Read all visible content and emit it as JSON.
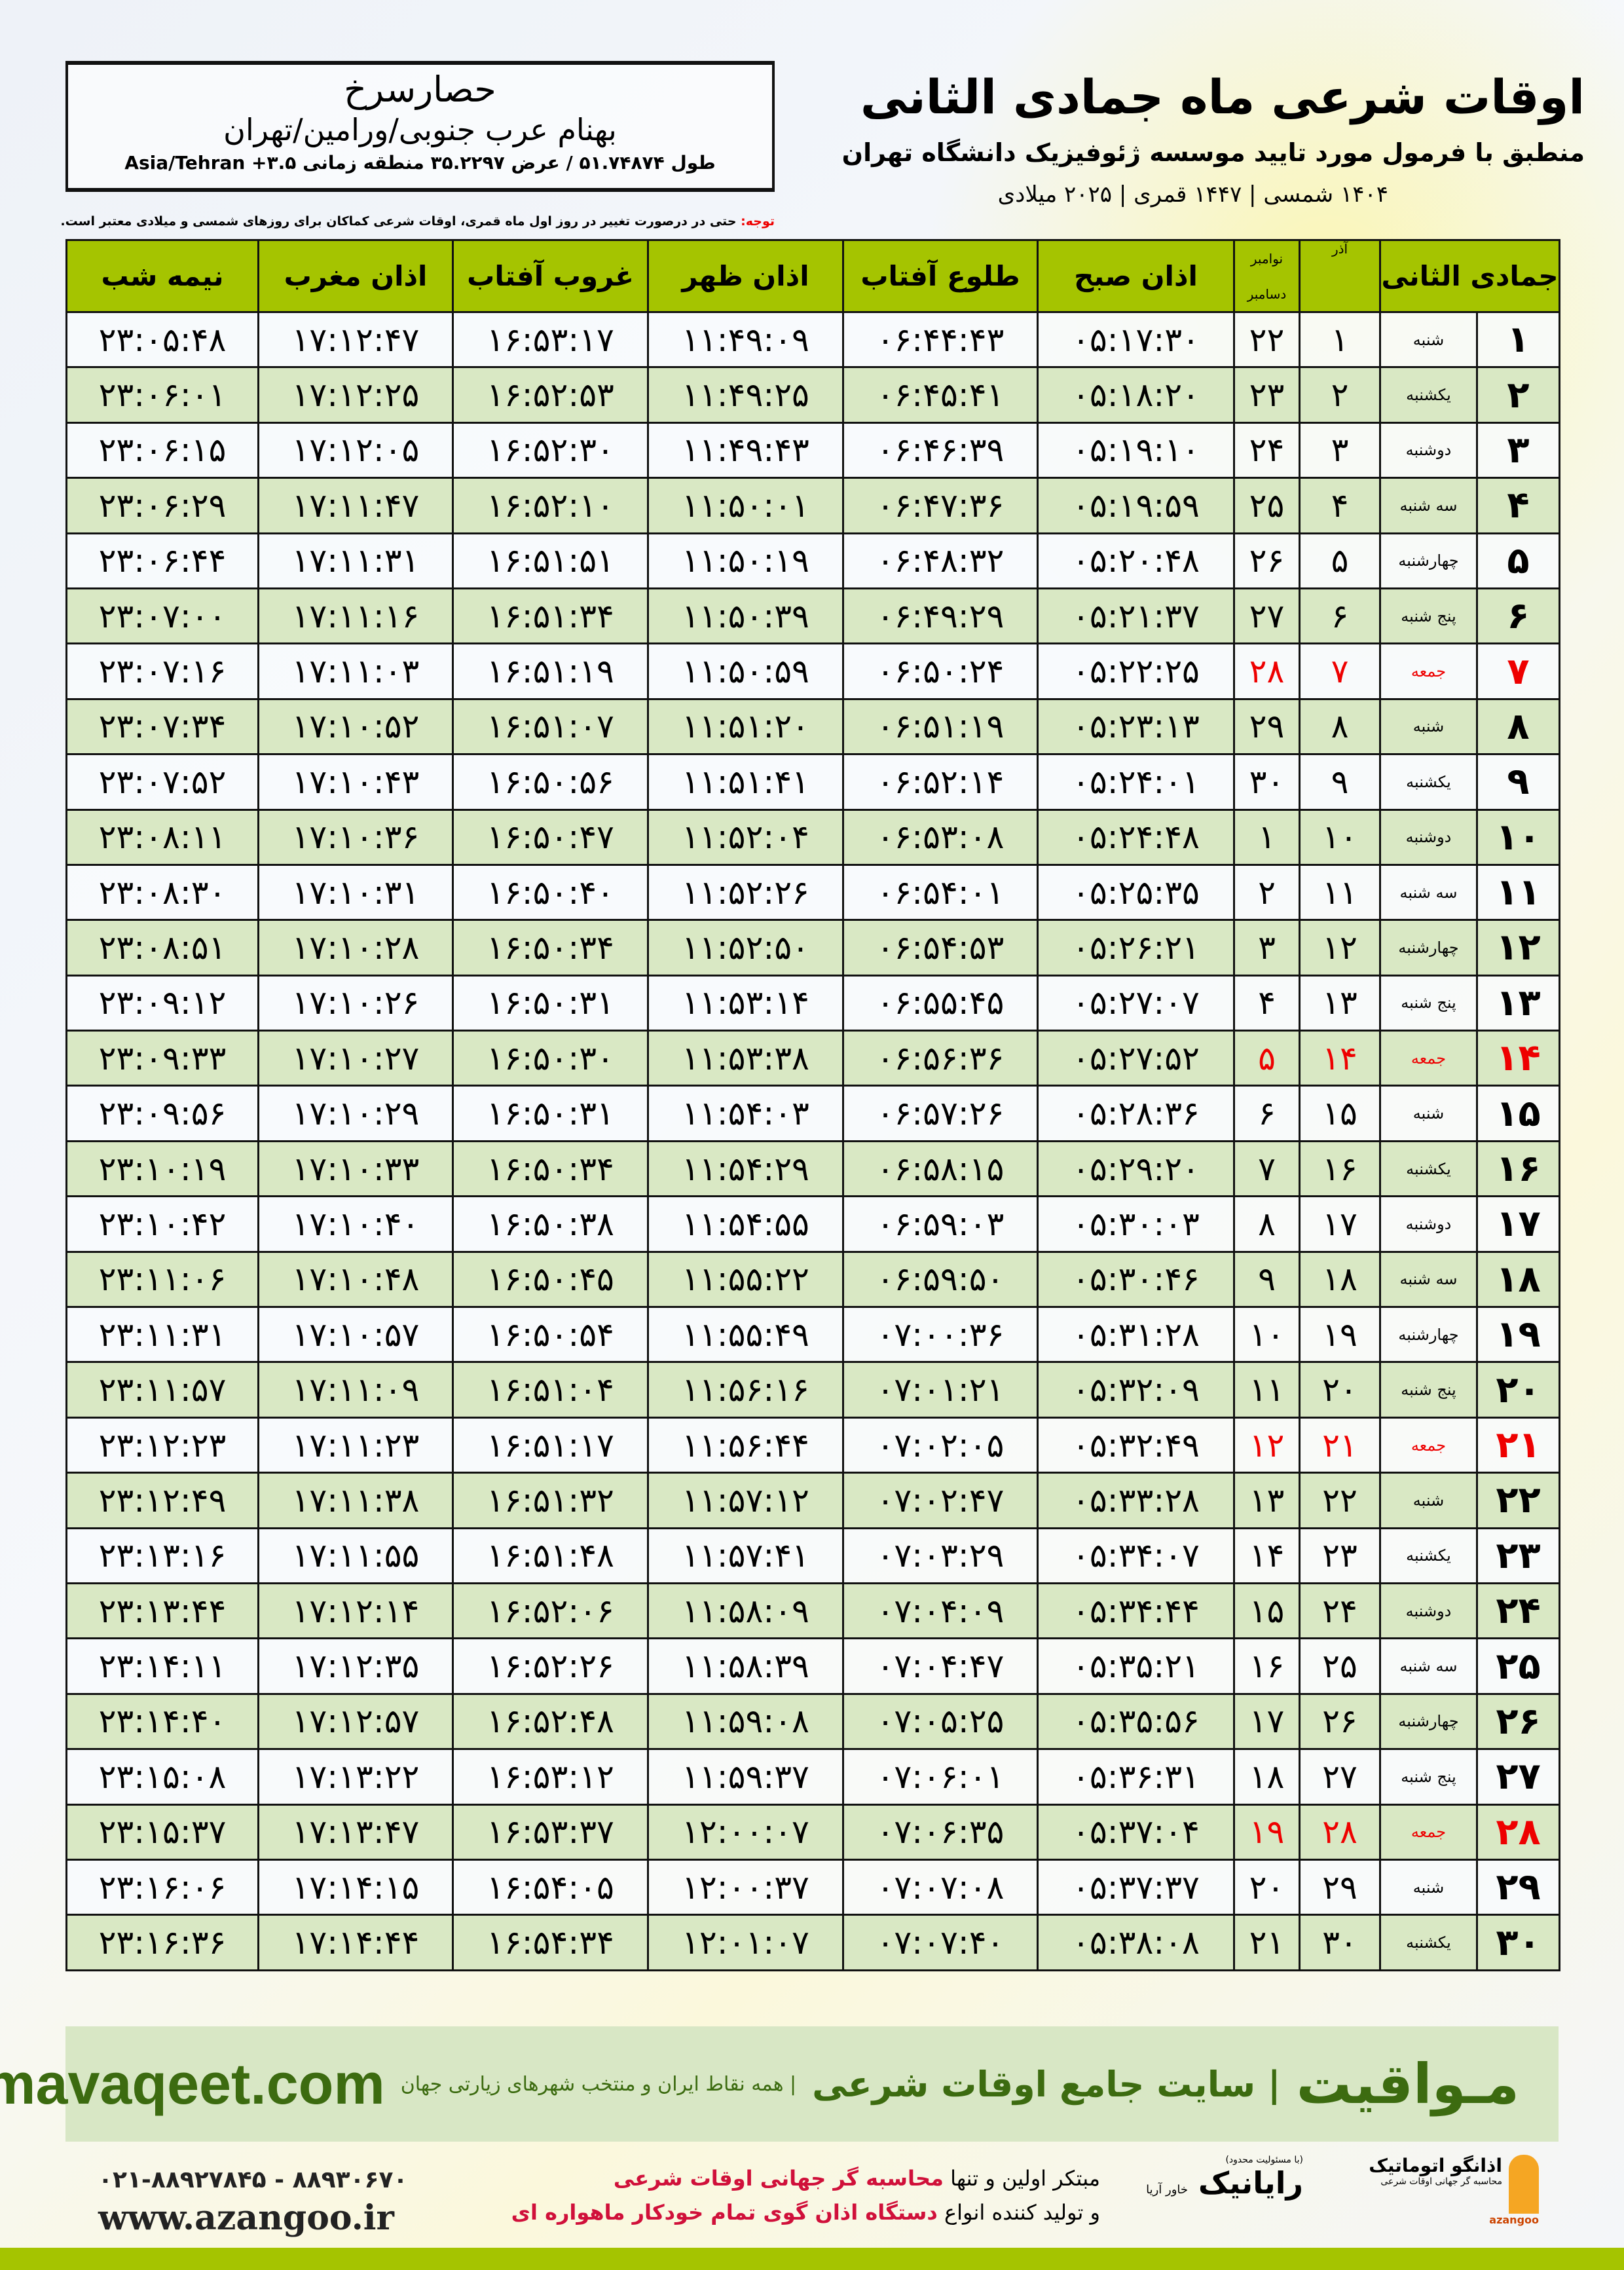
{
  "header": {
    "title": "اوقات شرعی ماه جمادی الثانی",
    "subtitle": "منطبق با فرمول مورد تایید موسسه ژئوفیزیک دانشگاه تهران",
    "years": "۱۴۰۴ شمسی | ۱۴۴۷ قمری | ۲۰۲۵ میلادی"
  },
  "location": {
    "city": "حصارسرخ",
    "region": "بهنام عرب جنوبی/ورامین/تهران",
    "coords": "طول ۵۱.۷۴۸۷۴ / عرض ۳۵.۲۲۹۷ منطقه زمانی ۳.۵+ Asia/Tehran"
  },
  "note": {
    "label": "توجه:",
    "text": " حتی در درصورت تغییر در روز اول ماه قمری، اوقات شرعی کماکان برای روزهای شمسی و میلادی معتبر است."
  },
  "table": {
    "headers": {
      "hijri": "جمادی الثانی",
      "azar": "آذر",
      "greg_top": "نوامبر",
      "greg_bottom": "دسامبر",
      "fajr": "اذان صبح",
      "sunrise": "طلوع آفتاب",
      "dhuhr": "اذان ظهر",
      "sunset": "غروب آفتاب",
      "maghrib": "اذان مغرب",
      "midnight": "نیمه شب"
    },
    "holiday_color": "#e00000",
    "rows": [
      [
        "۱",
        "شنبه",
        "۱",
        "۲۲",
        "۰۵:۱۷:۳۰",
        "۰۶:۴۴:۴۳",
        "۱۱:۴۹:۰۹",
        "۱۶:۵۳:۱۷",
        "۱۷:۱۲:۴۷",
        "۲۳:۰۵:۴۸"
      ],
      [
        "۲",
        "یکشنبه",
        "۲",
        "۲۳",
        "۰۵:۱۸:۲۰",
        "۰۶:۴۵:۴۱",
        "۱۱:۴۹:۲۵",
        "۱۶:۵۲:۵۳",
        "۱۷:۱۲:۲۵",
        "۲۳:۰۶:۰۱"
      ],
      [
        "۳",
        "دوشنبه",
        "۳",
        "۲۴",
        "۰۵:۱۹:۱۰",
        "۰۶:۴۶:۳۹",
        "۱۱:۴۹:۴۳",
        "۱۶:۵۲:۳۰",
        "۱۷:۱۲:۰۵",
        "۲۳:۰۶:۱۵"
      ],
      [
        "۴",
        "سه شنبه",
        "۴",
        "۲۵",
        "۰۵:۱۹:۵۹",
        "۰۶:۴۷:۳۶",
        "۱۱:۵۰:۰۱",
        "۱۶:۵۲:۱۰",
        "۱۷:۱۱:۴۷",
        "۲۳:۰۶:۲۹"
      ],
      [
        "۵",
        "چهارشنبه",
        "۵",
        "۲۶",
        "۰۵:۲۰:۴۸",
        "۰۶:۴۸:۳۲",
        "۱۱:۵۰:۱۹",
        "۱۶:۵۱:۵۱",
        "۱۷:۱۱:۳۱",
        "۲۳:۰۶:۴۴"
      ],
      [
        "۶",
        "پنج شنبه",
        "۶",
        "۲۷",
        "۰۵:۲۱:۳۷",
        "۰۶:۴۹:۲۹",
        "۱۱:۵۰:۳۹",
        "۱۶:۵۱:۳۴",
        "۱۷:۱۱:۱۶",
        "۲۳:۰۷:۰۰"
      ],
      [
        "۷",
        "جمعه",
        "۷",
        "۲۸",
        "۰۵:۲۲:۲۵",
        "۰۶:۵۰:۲۴",
        "۱۱:۵۰:۵۹",
        "۱۶:۵۱:۱۹",
        "۱۷:۱۱:۰۳",
        "۲۳:۰۷:۱۶"
      ],
      [
        "۸",
        "شنبه",
        "۸",
        "۲۹",
        "۰۵:۲۳:۱۳",
        "۰۶:۵۱:۱۹",
        "۱۱:۵۱:۲۰",
        "۱۶:۵۱:۰۷",
        "۱۷:۱۰:۵۲",
        "۲۳:۰۷:۳۴"
      ],
      [
        "۹",
        "یکشنبه",
        "۹",
        "۳۰",
        "۰۵:۲۴:۰۱",
        "۰۶:۵۲:۱۴",
        "۱۱:۵۱:۴۱",
        "۱۶:۵۰:۵۶",
        "۱۷:۱۰:۴۳",
        "۲۳:۰۷:۵۲"
      ],
      [
        "۱۰",
        "دوشنبه",
        "۱۰",
        "۱",
        "۰۵:۲۴:۴۸",
        "۰۶:۵۳:۰۸",
        "۱۱:۵۲:۰۴",
        "۱۶:۵۰:۴۷",
        "۱۷:۱۰:۳۶",
        "۲۳:۰۸:۱۱"
      ],
      [
        "۱۱",
        "سه شنبه",
        "۱۱",
        "۲",
        "۰۵:۲۵:۳۵",
        "۰۶:۵۴:۰۱",
        "۱۱:۵۲:۲۶",
        "۱۶:۵۰:۴۰",
        "۱۷:۱۰:۳۱",
        "۲۳:۰۸:۳۰"
      ],
      [
        "۱۲",
        "چهارشنبه",
        "۱۲",
        "۳",
        "۰۵:۲۶:۲۱",
        "۰۶:۵۴:۵۳",
        "۱۱:۵۲:۵۰",
        "۱۶:۵۰:۳۴",
        "۱۷:۱۰:۲۸",
        "۲۳:۰۸:۵۱"
      ],
      [
        "۱۳",
        "پنج شنبه",
        "۱۳",
        "۴",
        "۰۵:۲۷:۰۷",
        "۰۶:۵۵:۴۵",
        "۱۱:۵۳:۱۴",
        "۱۶:۵۰:۳۱",
        "۱۷:۱۰:۲۶",
        "۲۳:۰۹:۱۲"
      ],
      [
        "۱۴",
        "جمعه",
        "۱۴",
        "۵",
        "۰۵:۲۷:۵۲",
        "۰۶:۵۶:۳۶",
        "۱۱:۵۳:۳۸",
        "۱۶:۵۰:۳۰",
        "۱۷:۱۰:۲۷",
        "۲۳:۰۹:۳۳"
      ],
      [
        "۱۵",
        "شنبه",
        "۱۵",
        "۶",
        "۰۵:۲۸:۳۶",
        "۰۶:۵۷:۲۶",
        "۱۱:۵۴:۰۳",
        "۱۶:۵۰:۳۱",
        "۱۷:۱۰:۲۹",
        "۲۳:۰۹:۵۶"
      ],
      [
        "۱۶",
        "یکشنبه",
        "۱۶",
        "۷",
        "۰۵:۲۹:۲۰",
        "۰۶:۵۸:۱۵",
        "۱۱:۵۴:۲۹",
        "۱۶:۵۰:۳۴",
        "۱۷:۱۰:۳۳",
        "۲۳:۱۰:۱۹"
      ],
      [
        "۱۷",
        "دوشنبه",
        "۱۷",
        "۸",
        "۰۵:۳۰:۰۳",
        "۰۶:۵۹:۰۳",
        "۱۱:۵۴:۵۵",
        "۱۶:۵۰:۳۸",
        "۱۷:۱۰:۴۰",
        "۲۳:۱۰:۴۲"
      ],
      [
        "۱۸",
        "سه شنبه",
        "۱۸",
        "۹",
        "۰۵:۳۰:۴۶",
        "۰۶:۵۹:۵۰",
        "۱۱:۵۵:۲۲",
        "۱۶:۵۰:۴۵",
        "۱۷:۱۰:۴۸",
        "۲۳:۱۱:۰۶"
      ],
      [
        "۱۹",
        "چهارشنبه",
        "۱۹",
        "۱۰",
        "۰۵:۳۱:۲۸",
        "۰۷:۰۰:۳۶",
        "۱۱:۵۵:۴۹",
        "۱۶:۵۰:۵۴",
        "۱۷:۱۰:۵۷",
        "۲۳:۱۱:۳۱"
      ],
      [
        "۲۰",
        "پنج شنبه",
        "۲۰",
        "۱۱",
        "۰۵:۳۲:۰۹",
        "۰۷:۰۱:۲۱",
        "۱۱:۵۶:۱۶",
        "۱۶:۵۱:۰۴",
        "۱۷:۱۱:۰۹",
        "۲۳:۱۱:۵۷"
      ],
      [
        "۲۱",
        "جمعه",
        "۲۱",
        "۱۲",
        "۰۵:۳۲:۴۹",
        "۰۷:۰۲:۰۵",
        "۱۱:۵۶:۴۴",
        "۱۶:۵۱:۱۷",
        "۱۷:۱۱:۲۳",
        "۲۳:۱۲:۲۳"
      ],
      [
        "۲۲",
        "شنبه",
        "۲۲",
        "۱۳",
        "۰۵:۳۳:۲۸",
        "۰۷:۰۲:۴۷",
        "۱۱:۵۷:۱۲",
        "۱۶:۵۱:۳۲",
        "۱۷:۱۱:۳۸",
        "۲۳:۱۲:۴۹"
      ],
      [
        "۲۳",
        "یکشنبه",
        "۲۳",
        "۱۴",
        "۰۵:۳۴:۰۷",
        "۰۷:۰۳:۲۹",
        "۱۱:۵۷:۴۱",
        "۱۶:۵۱:۴۸",
        "۱۷:۱۱:۵۵",
        "۲۳:۱۳:۱۶"
      ],
      [
        "۲۴",
        "دوشنبه",
        "۲۴",
        "۱۵",
        "۰۵:۳۴:۴۴",
        "۰۷:۰۴:۰۹",
        "۱۱:۵۸:۰۹",
        "۱۶:۵۲:۰۶",
        "۱۷:۱۲:۱۴",
        "۲۳:۱۳:۴۴"
      ],
      [
        "۲۵",
        "سه شنبه",
        "۲۵",
        "۱۶",
        "۰۵:۳۵:۲۱",
        "۰۷:۰۴:۴۷",
        "۱۱:۵۸:۳۹",
        "۱۶:۵۲:۲۶",
        "۱۷:۱۲:۳۵",
        "۲۳:۱۴:۱۱"
      ],
      [
        "۲۶",
        "چهارشنبه",
        "۲۶",
        "۱۷",
        "۰۵:۳۵:۵۶",
        "۰۷:۰۵:۲۵",
        "۱۱:۵۹:۰۸",
        "۱۶:۵۲:۴۸",
        "۱۷:۱۲:۵۷",
        "۲۳:۱۴:۴۰"
      ],
      [
        "۲۷",
        "پنج شنبه",
        "۲۷",
        "۱۸",
        "۰۵:۳۶:۳۱",
        "۰۷:۰۶:۰۱",
        "۱۱:۵۹:۳۷",
        "۱۶:۵۳:۱۲",
        "۱۷:۱۳:۲۲",
        "۲۳:۱۵:۰۸"
      ],
      [
        "۲۸",
        "جمعه",
        "۲۸",
        "۱۹",
        "۰۵:۳۷:۰۴",
        "۰۷:۰۶:۳۵",
        "۱۲:۰۰:۰۷",
        "۱۶:۵۳:۳۷",
        "۱۷:۱۳:۴۷",
        "۲۳:۱۵:۳۷"
      ],
      [
        "۲۹",
        "شنبه",
        "۲۹",
        "۲۰",
        "۰۵:۳۷:۳۷",
        "۰۷:۰۷:۰۸",
        "۱۲:۰۰:۳۷",
        "۱۶:۵۴:۰۵",
        "۱۷:۱۴:۱۵",
        "۲۳:۱۶:۰۶"
      ],
      [
        "۳۰",
        "یکشنبه",
        "۳۰",
        "۲۱",
        "۰۵:۳۸:۰۸",
        "۰۷:۰۷:۴۰",
        "۱۲:۰۱:۰۷",
        "۱۶:۵۴:۳۴",
        "۱۷:۱۴:۴۴",
        "۲۳:۱۶:۳۶"
      ]
    ]
  },
  "banner": {
    "brand": "مـواقیت",
    "tagline": "| سایت جامع اوقات شرعی",
    "slogan": "| همه نقاط ایران و منتخب شهرهای زیارتی جهان",
    "site": "mavaqeet.com"
  },
  "footer": {
    "phones": "۰۲۱-۸۸۹۲۷۸۴۵ - ۸۸۹۳۰۶۷۰",
    "web": "www.azangoo.ir",
    "promo_1a": "مبتکر اولین و تنها ",
    "promo_1b": "محاسبه گر جهانی اوقات شرعی",
    "promo_2a": "و تولید کننده انواع ",
    "promo_2b": "دستگاه اذان گوی تمام خودکار ماهواره ای",
    "logo1_name": "اذانگو اتوماتیک",
    "logo1_sub": "محاسبه گر جهانی اوقات شرعی",
    "logo1_en": "azangoo",
    "logo2_name": "رایانیک",
    "logo2_sub": "خاور آریا",
    "logo2_note": "(با مسئولیت محدود)"
  }
}
